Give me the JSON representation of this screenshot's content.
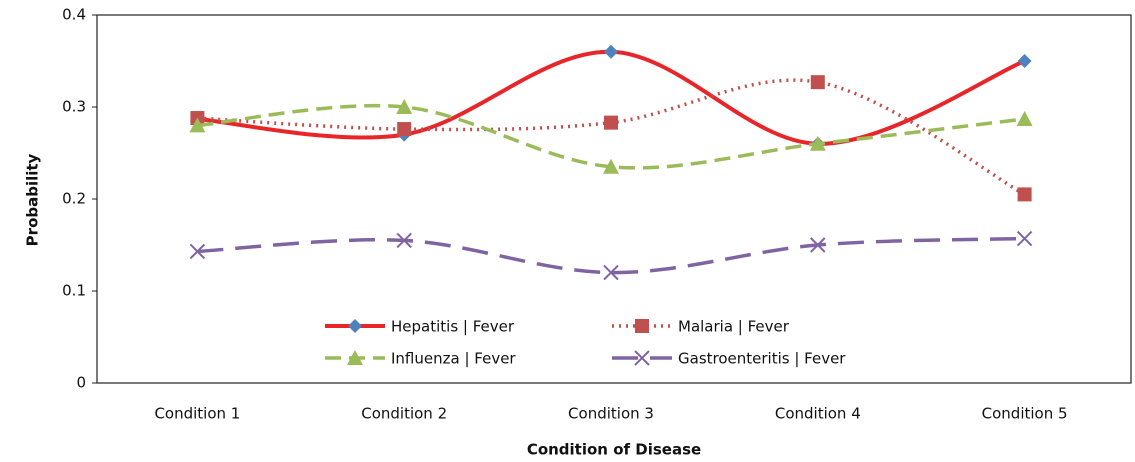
{
  "chart_data": {
    "type": "line",
    "x_label": "Condition of Disease",
    "y_label": "Probability",
    "categories": [
      "Condition 1",
      "Condition 2",
      "Condition 3",
      "Condition 4",
      "Condition 5"
    ],
    "series": [
      {
        "name": "Hepatitis | Fever",
        "color": "#e8262a",
        "marker_color": "#4f81bd",
        "marker": "diamond",
        "line_style": "solid",
        "values": [
          0.287,
          0.27,
          0.36,
          0.26,
          0.35
        ]
      },
      {
        "name": "Malaria | Fever",
        "color": "#c0504d",
        "marker_color": "#c0504d",
        "marker": "square",
        "line_style": "dotted",
        "values": [
          0.288,
          0.276,
          0.283,
          0.327,
          0.205
        ]
      },
      {
        "name": "Influenza | Fever",
        "color": "#9bbb59",
        "marker_color": "#9bbb59",
        "marker": "triangle",
        "line_style": "dashed",
        "values": [
          0.28,
          0.3,
          0.235,
          0.26,
          0.287
        ]
      },
      {
        "name": "Gastroenteritis | Fever",
        "color": "#8064a2",
        "marker_color": "#8064a2",
        "marker": "x",
        "line_style": "longdash",
        "values": [
          0.143,
          0.155,
          0.12,
          0.15,
          0.157
        ]
      }
    ],
    "ylim": [
      0,
      0.4
    ],
    "yticks": [
      0,
      0.1,
      0.2,
      0.3,
      0.4
    ],
    "grid": false,
    "legend": "bottom",
    "smooth": true
  }
}
